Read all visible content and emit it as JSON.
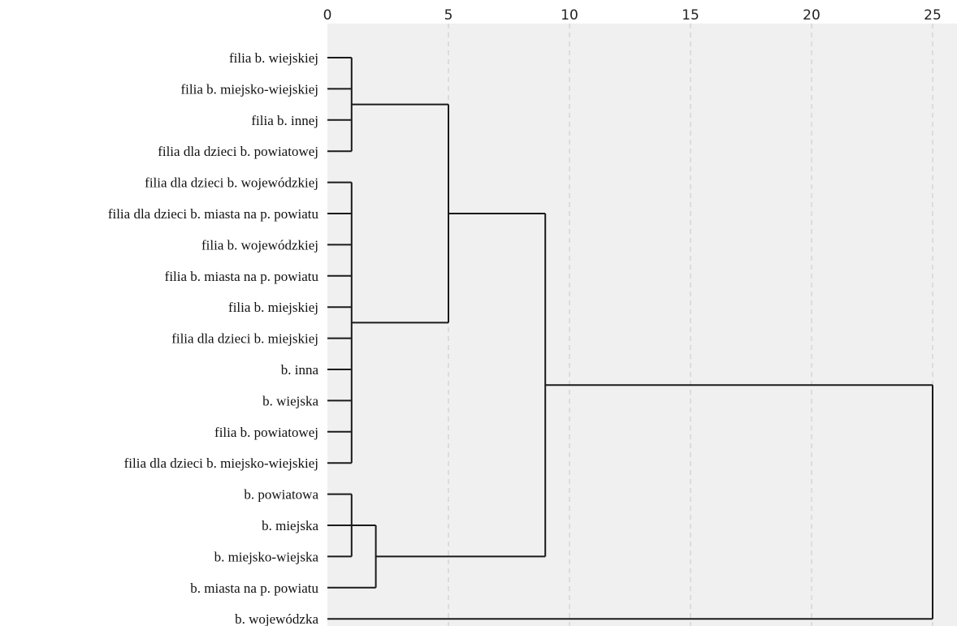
{
  "chart_data": {
    "type": "dendrogram",
    "title": "",
    "xlim": [
      0,
      25
    ],
    "x_ticks": [
      0,
      5,
      10,
      15,
      20,
      25
    ],
    "grid": "vertical-dashed",
    "leaves": [
      "filia b. wiejskiej",
      "filia b. miejsko-wiejskiej",
      "filia b. innej",
      "filia dla dzieci b. powiatowej",
      "filia dla dzieci b. wojewódzkiej",
      "filia dla dzieci b. miasta na p. powiatu",
      "filia b. wojewódzkiej",
      "filia b. miasta na p. powiatu",
      "filia b. miejskiej",
      "filia dla dzieci b. miejskiej",
      "b. inna",
      "b. wiejska",
      "filia b. powiatowej",
      "filia dla dzieci b. miejsko-wiejskiej",
      "b. powiatowa",
      "b. miejska",
      "b. miejsko-wiejska",
      "b. miasta na p. powiatu",
      "b. wojewódzka"
    ],
    "merges": [
      {
        "id": "c1",
        "children": [
          "L0",
          "L1",
          "L2",
          "L3"
        ],
        "height": 1
      },
      {
        "id": "c2",
        "children": [
          "L4",
          "L5",
          "L6",
          "L7",
          "L8",
          "L9",
          "L10",
          "L11",
          "L12",
          "L13"
        ],
        "height": 1
      },
      {
        "id": "c3",
        "children": [
          "L14",
          "L15",
          "L16"
        ],
        "height": 1
      },
      {
        "id": "c4",
        "children": [
          "c3",
          "L17"
        ],
        "height": 2
      },
      {
        "id": "c5",
        "children": [
          "c1",
          "c2"
        ],
        "height": 5
      },
      {
        "id": "c6",
        "children": [
          "c5",
          "c4"
        ],
        "height": 9
      },
      {
        "id": "c7",
        "children": [
          "c6",
          "L18"
        ],
        "height": 25
      }
    ]
  }
}
